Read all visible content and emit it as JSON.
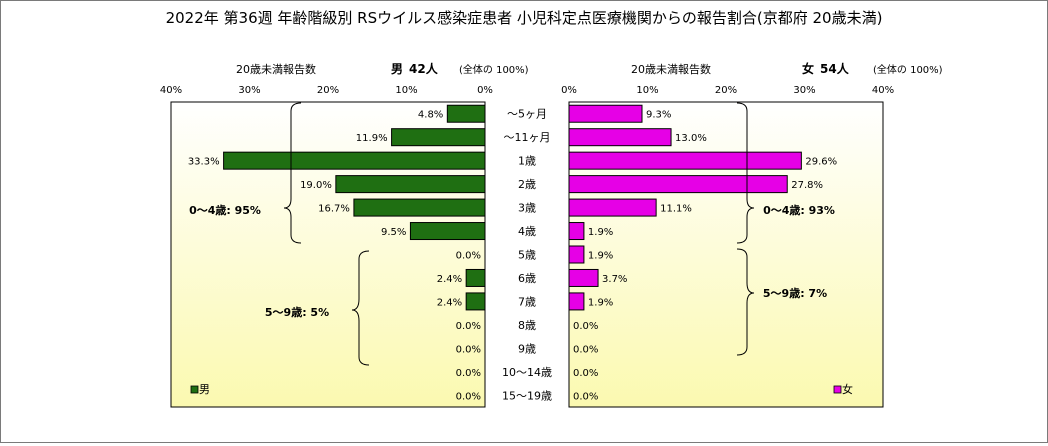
{
  "title": "2022年 第36週 年齢階級別 RSウイルス感染症患者 小児科定点医療機関からの報告割合(京都府 20歳未満)",
  "left_panel": {
    "axis_caption": "20歳未満報告数",
    "sex": "男",
    "count": "42人",
    "share_note": "(全体の  100%)",
    "legend_label": "男"
  },
  "right_panel": {
    "axis_caption": "20歳未満報告数",
    "sex": "女",
    "count": "54人",
    "share_note": "(全体の  100%)",
    "legend_label": "女"
  },
  "brackets": {
    "male_0_4": "0～4歳: 95%",
    "male_5_9": "5～9歳: 5%",
    "female_0_4": "0～4歳: 93%",
    "female_5_9": "5～9歳: 7%"
  },
  "colors": {
    "male": "#1f6f12",
    "female": "#e600e6",
    "gradient_top": "#ffffff",
    "gradient_bottom": "#fbf9b0"
  },
  "chart_data": {
    "type": "bar",
    "orientation": "horizontal",
    "categories": [
      "～5ヶ月",
      "～11ヶ月",
      "1歳",
      "2歳",
      "3歳",
      "4歳",
      "5歳",
      "6歳",
      "7歳",
      "8歳",
      "9歳",
      "10～14歳",
      "15～19歳"
    ],
    "series": [
      {
        "name": "男",
        "values": [
          4.8,
          11.9,
          33.3,
          19.0,
          16.7,
          9.5,
          0.0,
          2.4,
          2.4,
          0.0,
          0.0,
          0.0,
          0.0
        ],
        "labels": [
          "4.8%",
          "11.9%",
          "33.3%",
          "19.0%",
          "16.7%",
          "9.5%",
          "0.0%",
          "2.4%",
          "2.4%",
          "0.0%",
          "0.0%",
          "0.0%",
          "0.0%"
        ]
      },
      {
        "name": "女",
        "values": [
          9.3,
          13.0,
          29.6,
          27.8,
          11.1,
          1.9,
          1.9,
          3.7,
          1.9,
          0.0,
          0.0,
          0.0,
          0.0
        ],
        "labels": [
          "9.3%",
          "13.0%",
          "29.6%",
          "27.8%",
          "11.1%",
          "1.9%",
          "1.9%",
          "3.7%",
          "1.9%",
          "0.0%",
          "0.0%",
          "0.0%",
          "0.0%"
        ]
      }
    ],
    "xlim": [
      0,
      40
    ],
    "ticks": [
      0,
      10,
      20,
      30,
      40
    ],
    "tick_labels": [
      "0%",
      "10%",
      "20%",
      "30%",
      "40%"
    ]
  }
}
